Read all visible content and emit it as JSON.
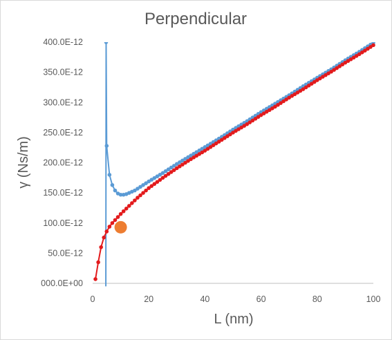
{
  "chart_data": {
    "type": "scatter",
    "title": "Perpendicular",
    "xlabel": "L (nm)",
    "ylabel": "γ (Ns/m)",
    "xlim": [
      0,
      100
    ],
    "ylim": [
      0,
      4e-10
    ],
    "x_ticks": [
      "0",
      "20",
      "40",
      "60",
      "80",
      "100"
    ],
    "y_ticks": [
      "000.0E+00",
      "50.0E-12",
      "100.0E-12",
      "150.0E-12",
      "200.0E-12",
      "250.0E-12",
      "300.0E-12",
      "350.0E-12",
      "400.0E-12"
    ],
    "grid": false,
    "legend": "none",
    "series": [
      {
        "color": "#5b9bd5",
        "style": "line-markers",
        "points": [
          [
            4.7,
            -5e-12
          ],
          [
            4.8,
            4e-10
          ],
          [
            5,
            2.28e-10
          ],
          [
            6,
            1.8e-10
          ],
          [
            7,
            1.63e-10
          ],
          [
            8,
            1.54e-10
          ],
          [
            9,
            1.49e-10
          ],
          [
            10,
            1.47e-10
          ],
          [
            11,
            1.47e-10
          ],
          [
            12,
            1.48e-10
          ],
          [
            13,
            1.5e-10
          ],
          [
            14,
            1.52e-10
          ],
          [
            15,
            1.54e-10
          ],
          [
            16,
            1.57e-10
          ],
          [
            17,
            1.6e-10
          ],
          [
            18,
            1.63e-10
          ],
          [
            19,
            1.66e-10
          ],
          [
            20,
            1.69e-10
          ],
          [
            25,
            1.83e-10
          ],
          [
            30,
            1.98e-10
          ],
          [
            35,
            2.12e-10
          ],
          [
            40,
            2.26e-10
          ],
          [
            45,
            2.4e-10
          ],
          [
            50,
            2.55e-10
          ],
          [
            55,
            2.69e-10
          ],
          [
            60,
            2.84e-10
          ],
          [
            65,
            2.98e-10
          ],
          [
            70,
            3.12e-10
          ],
          [
            75,
            3.27e-10
          ],
          [
            80,
            3.41e-10
          ],
          [
            85,
            3.55e-10
          ],
          [
            90,
            3.7e-10
          ],
          [
            95,
            3.84e-10
          ],
          [
            100,
            3.99e-10
          ]
        ]
      },
      {
        "color": "#e31a1c",
        "style": "line-markers",
        "points": [
          [
            1,
            7e-12
          ],
          [
            2,
            3.5e-11
          ],
          [
            3,
            6e-11
          ],
          [
            4,
            7.6e-11
          ],
          [
            5,
            8.6e-11
          ],
          [
            6,
            9.4e-11
          ],
          [
            7,
            1e-10
          ],
          [
            8,
            1.05e-10
          ],
          [
            9,
            1.1e-10
          ],
          [
            10,
            1.15e-10
          ],
          [
            12,
            1.24e-10
          ],
          [
            14,
            1.33e-10
          ],
          [
            16,
            1.42e-10
          ],
          [
            18,
            1.5e-10
          ],
          [
            20,
            1.58e-10
          ],
          [
            25,
            1.75e-10
          ],
          [
            30,
            1.91e-10
          ],
          [
            35,
            2.06e-10
          ],
          [
            40,
            2.2e-10
          ],
          [
            45,
            2.35e-10
          ],
          [
            50,
            2.5e-10
          ],
          [
            55,
            2.64e-10
          ],
          [
            60,
            2.79e-10
          ],
          [
            65,
            2.93e-10
          ],
          [
            70,
            3.08e-10
          ],
          [
            75,
            3.22e-10
          ],
          [
            80,
            3.37e-10
          ],
          [
            85,
            3.51e-10
          ],
          [
            90,
            3.66e-10
          ],
          [
            95,
            3.8e-10
          ],
          [
            100,
            3.95e-10
          ]
        ]
      },
      {
        "color": "#ed7d31",
        "style": "marker-large",
        "points": [
          [
            10,
            9.3e-11
          ]
        ]
      }
    ]
  }
}
